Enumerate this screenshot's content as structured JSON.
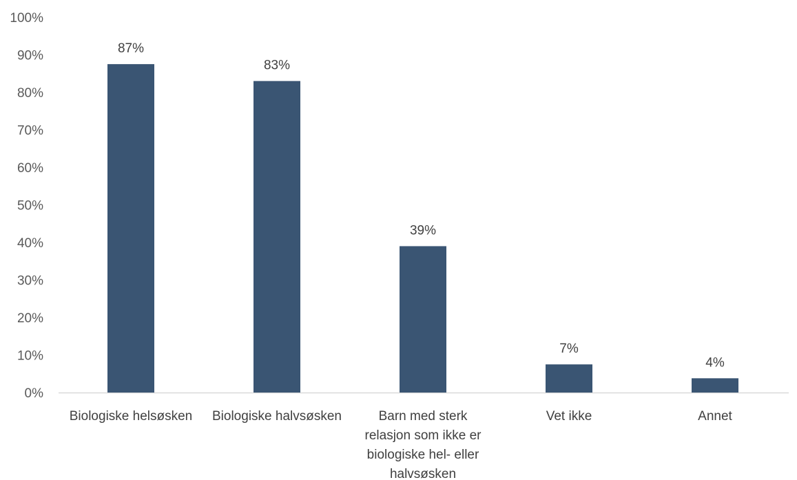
{
  "chart_data": {
    "type": "bar",
    "title": "",
    "xlabel": "",
    "ylabel": "",
    "ylim": [
      0,
      100
    ],
    "y_ticks": [
      "0%",
      "10%",
      "20%",
      "30%",
      "40%",
      "50%",
      "60%",
      "70%",
      "80%",
      "90%",
      "100%"
    ],
    "grid": false,
    "legend": "none",
    "categories": [
      "Biologiske helsøsken",
      "Biologiske halvsøsken",
      "Barn med sterk relasjon som ikke er biologiske hel- eller halvsøsken",
      "Vet ikke",
      "Annet"
    ],
    "category_lines": [
      [
        "Biologiske helsøsken"
      ],
      [
        "Biologiske halvsøsken"
      ],
      [
        "Barn med sterk",
        "relasjon som ikke er",
        "biologiske hel- eller",
        "halvsøsken"
      ],
      [
        "Vet ikke"
      ],
      [
        "Annet"
      ]
    ],
    "series": [
      {
        "values": [
          87.5,
          83,
          39,
          7.5,
          3.8
        ]
      }
    ],
    "data_labels": [
      "87%",
      "83%",
      "39%",
      "7%",
      "4%"
    ],
    "colors": {
      "bar": "#3a5573",
      "axis": "#d9d9d9"
    }
  }
}
